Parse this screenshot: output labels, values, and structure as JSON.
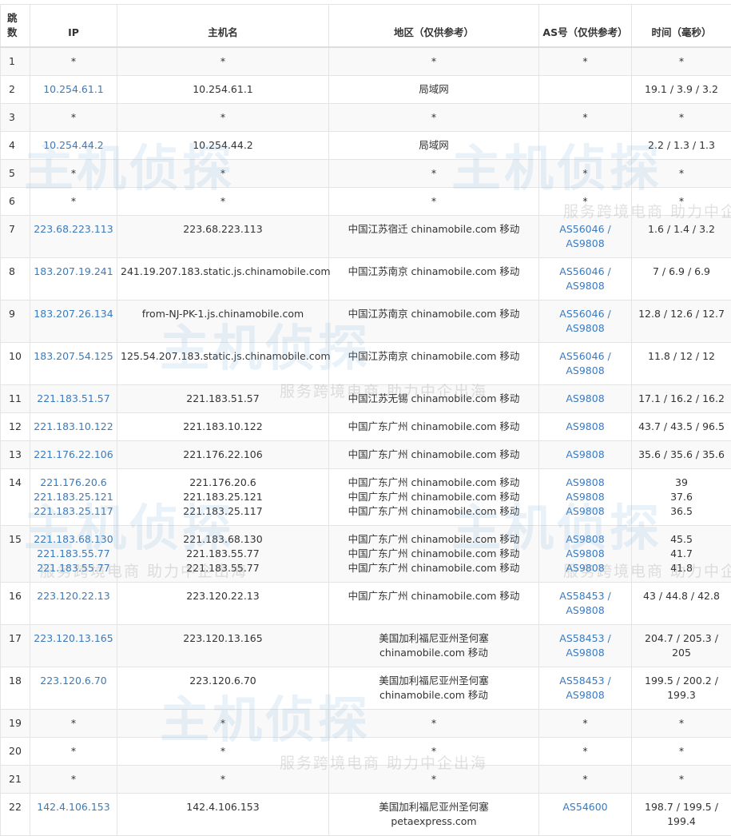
{
  "headers": [
    "跳数",
    "IP",
    "主机名",
    "地区（仅供参考）",
    "AS号（仅供参考）",
    "时间（毫秒）"
  ],
  "watermark": {
    "logo": "主机侦探",
    "slogan": "服务跨境电商 助力中企出海"
  },
  "colors": {
    "link": "#3a7bbf",
    "stripe": "#f9f9f9",
    "border": "#e4e4e4"
  },
  "rows": [
    {
      "hop": "1",
      "ip": [
        "*"
      ],
      "host": [
        "*"
      ],
      "region": [
        "*"
      ],
      "as": [
        "*"
      ],
      "time": [
        "*"
      ],
      "iplink": false
    },
    {
      "hop": "2",
      "ip": [
        "10.254.61.1"
      ],
      "host": [
        "10.254.61.1"
      ],
      "region": [
        "局域网"
      ],
      "as": [],
      "time": [
        "19.1 / 3.9 / 3.2"
      ],
      "iplink": true
    },
    {
      "hop": "3",
      "ip": [
        "*"
      ],
      "host": [
        "*"
      ],
      "region": [
        "*"
      ],
      "as": [
        "*"
      ],
      "time": [
        "*"
      ],
      "iplink": false
    },
    {
      "hop": "4",
      "ip": [
        "10.254.44.2"
      ],
      "host": [
        "10.254.44.2"
      ],
      "region": [
        "局域网"
      ],
      "as": [],
      "time": [
        "2.2 / 1.3 / 1.3"
      ],
      "iplink": true
    },
    {
      "hop": "5",
      "ip": [
        "*"
      ],
      "host": [
        "*"
      ],
      "region": [
        "*"
      ],
      "as": [
        "*"
      ],
      "time": [
        "*"
      ],
      "iplink": false
    },
    {
      "hop": "6",
      "ip": [
        "*"
      ],
      "host": [
        "*"
      ],
      "region": [
        "*"
      ],
      "as": [
        "*"
      ],
      "time": [
        "*"
      ],
      "iplink": false
    },
    {
      "hop": "7",
      "ip": [
        "223.68.223.113"
      ],
      "host": [
        "223.68.223.113"
      ],
      "region": [
        "中国江苏宿迁 chinamobile.com 移动"
      ],
      "as": [
        "AS56046 /",
        "AS9808"
      ],
      "time": [
        "1.6 / 1.4 / 3.2"
      ],
      "iplink": true
    },
    {
      "hop": "8",
      "ip": [
        "183.207.19.241"
      ],
      "host": [
        "241.19.207.183.static.js.chinamobile.com"
      ],
      "region": [
        "中国江苏南京 chinamobile.com 移动"
      ],
      "as": [
        "AS56046 /",
        "AS9808"
      ],
      "time": [
        "7 / 6.9 / 6.9"
      ],
      "iplink": true
    },
    {
      "hop": "9",
      "ip": [
        "183.207.26.134"
      ],
      "host": [
        "from-NJ-PK-1.js.chinamobile.com"
      ],
      "region": [
        "中国江苏南京 chinamobile.com 移动"
      ],
      "as": [
        "AS56046 /",
        "AS9808"
      ],
      "time": [
        "12.8 / 12.6 / 12.7"
      ],
      "iplink": true
    },
    {
      "hop": "10",
      "ip": [
        "183.207.54.125"
      ],
      "host": [
        "125.54.207.183.static.js.chinamobile.com"
      ],
      "region": [
        "中国江苏南京 chinamobile.com 移动"
      ],
      "as": [
        "AS56046 /",
        "AS9808"
      ],
      "time": [
        "11.8 / 12 / 12"
      ],
      "iplink": true
    },
    {
      "hop": "11",
      "ip": [
        "221.183.51.57"
      ],
      "host": [
        "221.183.51.57"
      ],
      "region": [
        "中国江苏无锡 chinamobile.com 移动"
      ],
      "as": [
        "AS9808"
      ],
      "time": [
        "17.1 / 16.2 / 16.2"
      ],
      "iplink": true
    },
    {
      "hop": "12",
      "ip": [
        "221.183.10.122"
      ],
      "host": [
        "221.183.10.122"
      ],
      "region": [
        "中国广东广州 chinamobile.com 移动"
      ],
      "as": [
        "AS9808"
      ],
      "time": [
        "43.7 / 43.5 / 96.5"
      ],
      "iplink": true
    },
    {
      "hop": "13",
      "ip": [
        "221.176.22.106"
      ],
      "host": [
        "221.176.22.106"
      ],
      "region": [
        "中国广东广州 chinamobile.com 移动"
      ],
      "as": [
        "AS9808"
      ],
      "time": [
        "35.6 / 35.6 / 35.6"
      ],
      "iplink": true
    },
    {
      "hop": "14",
      "ip": [
        "221.176.20.6",
        "221.183.25.121",
        "221.183.25.117"
      ],
      "host": [
        "221.176.20.6",
        "221.183.25.121",
        "221.183.25.117"
      ],
      "region": [
        "中国广东广州 chinamobile.com 移动",
        "中国广东广州 chinamobile.com 移动",
        "中国广东广州 chinamobile.com 移动"
      ],
      "as": [
        "AS9808",
        "AS9808",
        "AS9808"
      ],
      "time": [
        "39",
        "37.6",
        "36.5"
      ],
      "iplink": true
    },
    {
      "hop": "15",
      "ip": [
        "221.183.68.130",
        "221.183.55.77",
        "221.183.55.77"
      ],
      "host": [
        "221.183.68.130",
        "221.183.55.77",
        "221.183.55.77"
      ],
      "region": [
        "中国广东广州 chinamobile.com 移动",
        "中国广东广州 chinamobile.com 移动",
        "中国广东广州 chinamobile.com 移动"
      ],
      "as": [
        "AS9808",
        "AS9808",
        "AS9808"
      ],
      "time": [
        "45.5",
        "41.7",
        "41.8"
      ],
      "iplink": true
    },
    {
      "hop": "16",
      "ip": [
        "223.120.22.13"
      ],
      "host": [
        "223.120.22.13"
      ],
      "region": [
        "中国广东广州 chinamobile.com 移动"
      ],
      "as": [
        "AS58453 /",
        "AS9808"
      ],
      "time": [
        "43 / 44.8 / 42.8"
      ],
      "iplink": true
    },
    {
      "hop": "17",
      "ip": [
        "223.120.13.165"
      ],
      "host": [
        "223.120.13.165"
      ],
      "region": [
        "美国加利福尼亚州圣何塞",
        "chinamobile.com 移动"
      ],
      "as": [
        "AS58453 /",
        "AS9808"
      ],
      "time": [
        "204.7 / 205.3 /",
        "205"
      ],
      "iplink": true
    },
    {
      "hop": "18",
      "ip": [
        "223.120.6.70"
      ],
      "host": [
        "223.120.6.70"
      ],
      "region": [
        "美国加利福尼亚州圣何塞",
        "chinamobile.com 移动"
      ],
      "as": [
        "AS58453 /",
        "AS9808"
      ],
      "time": [
        "199.5 / 200.2 /",
        "199.3"
      ],
      "iplink": true
    },
    {
      "hop": "19",
      "ip": [
        "*"
      ],
      "host": [
        "*"
      ],
      "region": [
        "*"
      ],
      "as": [
        "*"
      ],
      "time": [
        "*"
      ],
      "iplink": false
    },
    {
      "hop": "20",
      "ip": [
        "*"
      ],
      "host": [
        "*"
      ],
      "region": [
        "*"
      ],
      "as": [
        "*"
      ],
      "time": [
        "*"
      ],
      "iplink": false
    },
    {
      "hop": "21",
      "ip": [
        "*"
      ],
      "host": [
        "*"
      ],
      "region": [
        "*"
      ],
      "as": [
        "*"
      ],
      "time": [
        "*"
      ],
      "iplink": false
    },
    {
      "hop": "22",
      "ip": [
        "142.4.106.153"
      ],
      "host": [
        "142.4.106.153"
      ],
      "region": [
        "美国加利福尼亚州圣何塞",
        "petaexpress.com"
      ],
      "as": [
        "AS54600"
      ],
      "time": [
        "198.7 / 199.5 /",
        "199.4"
      ],
      "iplink": true
    }
  ]
}
